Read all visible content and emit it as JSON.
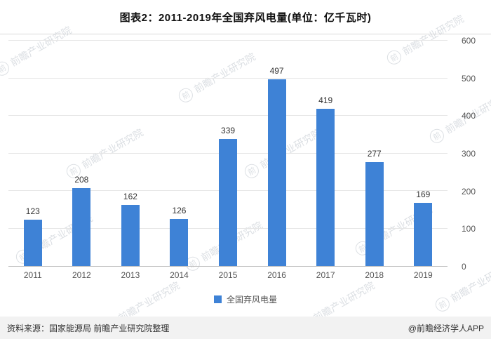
{
  "title": "图表2：2011-2019年全国弃风电量(单位：亿千瓦时)",
  "legend": {
    "label": "全国弃风电量"
  },
  "footer": {
    "source": "资料来源：国家能源局 前瞻产业研究院整理",
    "credit": "@前瞻经济学人APP"
  },
  "watermark": {
    "text": "前瞻产业研究院",
    "logo_char": "前"
  },
  "colors": {
    "bar": "#3e82d6",
    "title_text": "#111111",
    "grid": "#e6e6e6",
    "axis": "#bfbfbf"
  },
  "chart_data": {
    "type": "bar",
    "title": "图表2：2011-2019年全国弃风电量(单位：亿千瓦时)",
    "categories": [
      "2011",
      "2012",
      "2013",
      "2014",
      "2015",
      "2016",
      "2017",
      "2018",
      "2019"
    ],
    "values": [
      123,
      208,
      162,
      126,
      339,
      497,
      419,
      277,
      169
    ],
    "xlabel": "",
    "ylabel": "",
    "unit": "亿千瓦时",
    "ylim": [
      0,
      600
    ],
    "yticks": [
      0,
      100,
      200,
      300,
      400,
      500,
      600
    ],
    "grid": true,
    "legend": [
      "全国弃风电量"
    ],
    "legend_position": "bottom",
    "bar_color": "#3e82d6",
    "value_labels": true
  }
}
